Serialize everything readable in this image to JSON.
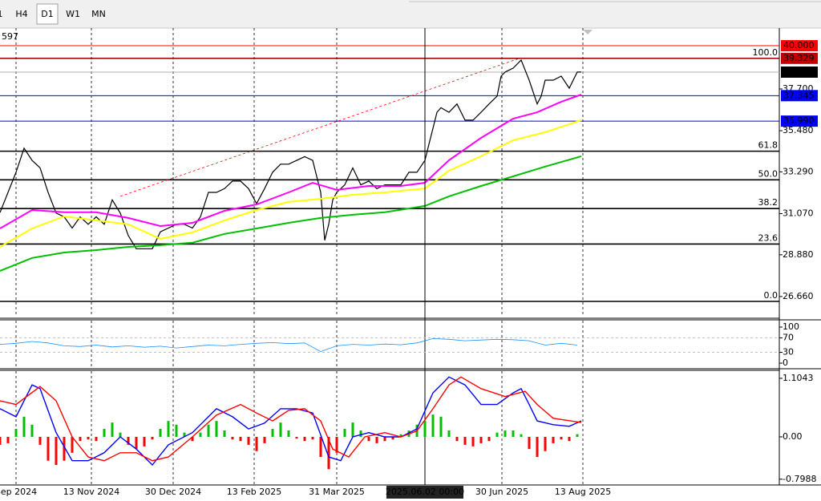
{
  "toolbar": {
    "timeframes": [
      "1",
      "H4",
      "D1",
      "W1",
      "MN"
    ],
    "selected": "D1"
  },
  "header_text": "597",
  "chart_data": [
    {
      "type": "line",
      "xlim": [
        0,
        972
      ],
      "ylim": [
        25.59,
        40.94
      ],
      "xticks": [
        {
          "value": 20,
          "label": "Sep 2024"
        },
        {
          "value": 114,
          "label": "13 Nov 2024"
        },
        {
          "value": 216,
          "label": "30 Dec 2024"
        },
        {
          "value": 317,
          "label": "13 Feb 2025"
        },
        {
          "value": 420,
          "label": "31 Mar 2025"
        },
        {
          "value": 626,
          "label": "30 Jun 2025"
        },
        {
          "value": 727,
          "label": "13 Aug 2025"
        }
      ],
      "yticks": [
        {
          "value": 26.66,
          "label": "26.660"
        },
        {
          "value": 28.88,
          "label": "28.880"
        },
        {
          "value": 31.07,
          "label": "31.070"
        },
        {
          "value": 33.29,
          "label": "33.290"
        },
        {
          "value": 35.48,
          "label": "35.480"
        },
        {
          "value": 37.7,
          "label": "37.700"
        }
      ],
      "grid": true,
      "crosshair": {
        "x": 530,
        "label": "2025.06.02 00:00"
      },
      "series": [
        {
          "name": "Close",
          "color": "#000000",
          "x": [
            0,
            10,
            20,
            30,
            40,
            50,
            60,
            70,
            80,
            90,
            100,
            110,
            120,
            130,
            140,
            150,
            160,
            170,
            180,
            190,
            200,
            210,
            220,
            230,
            240,
            250,
            260,
            270,
            280,
            290,
            300,
            310,
            320,
            330,
            340,
            350,
            360,
            370,
            380,
            390,
            400,
            405,
            410,
            415,
            420,
            430,
            440,
            450,
            460,
            470,
            480,
            490,
            500,
            510,
            520,
            530,
            535,
            540,
            545,
            550,
            560,
            570,
            580,
            590,
            600,
            610,
            620,
            625,
            630,
            640,
            650,
            660,
            670,
            675,
            680,
            690,
            700,
            710,
            720,
            725
          ],
          "values": [
            31.13,
            32.2,
            33.27,
            34.55,
            33.9,
            33.5,
            32.2,
            31.1,
            30.9,
            30.3,
            30.9,
            30.5,
            30.9,
            30.5,
            31.8,
            31.1,
            29.9,
            29.2,
            29.2,
            29.2,
            30.1,
            30.3,
            30.5,
            30.5,
            30.3,
            30.9,
            32.2,
            32.2,
            32.4,
            32.8,
            32.8,
            32.4,
            31.6,
            32.4,
            33.27,
            33.7,
            33.7,
            33.9,
            34.1,
            33.9,
            32.2,
            29.65,
            30.5,
            31.8,
            32.2,
            32.6,
            33.5,
            32.6,
            32.8,
            32.4,
            32.6,
            32.6,
            32.6,
            33.27,
            33.27,
            33.9,
            34.76,
            35.6,
            36.46,
            36.7,
            36.46,
            36.9,
            36.04,
            36.04,
            36.46,
            36.9,
            37.32,
            38.38,
            38.6,
            38.81,
            39.24,
            38.17,
            36.9,
            37.32,
            38.17,
            38.17,
            38.38,
            37.74,
            38.6,
            38.6
          ]
        },
        {
          "name": "MA fast",
          "color": "#ff00ff",
          "x": [
            0,
            40,
            80,
            120,
            160,
            200,
            240,
            280,
            320,
            360,
            390,
            420,
            460,
            500,
            530,
            560,
            600,
            640,
            670,
            700,
            725
          ],
          "values": [
            30.28,
            31.26,
            31.14,
            31.14,
            30.84,
            30.41,
            30.58,
            31.22,
            31.56,
            32.2,
            32.71,
            32.33,
            32.54,
            32.54,
            32.71,
            33.91,
            35.1,
            36.12,
            36.46,
            37.02,
            37.4
          ]
        },
        {
          "name": "MA mid",
          "color": "#ffff00",
          "x": [
            0,
            40,
            80,
            120,
            160,
            200,
            240,
            280,
            320,
            360,
            400,
            440,
            480,
            530,
            560,
            600,
            640,
            680,
            725
          ],
          "values": [
            29.3,
            30.28,
            30.92,
            30.71,
            30.5,
            29.73,
            30.07,
            30.71,
            31.26,
            31.69,
            31.86,
            32.07,
            32.2,
            32.41,
            33.35,
            34.12,
            34.97,
            35.4,
            36.04
          ]
        },
        {
          "name": "MA slow",
          "color": "#00c000",
          "x": [
            0,
            40,
            80,
            120,
            160,
            200,
            240,
            280,
            320,
            360,
            400,
            440,
            480,
            530,
            560,
            600,
            640,
            680,
            725
          ],
          "values": [
            28.02,
            28.71,
            29.0,
            29.13,
            29.3,
            29.39,
            29.52,
            29.99,
            30.28,
            30.58,
            30.84,
            31.01,
            31.14,
            31.48,
            31.99,
            32.54,
            33.05,
            33.57,
            34.12
          ]
        }
      ],
      "trendline": {
        "color": "#ff0000",
        "x": [
          150,
          650
        ],
        "values": [
          31.99,
          39.36
        ]
      },
      "price_lines": [
        {
          "value": 40.0,
          "label": "40.000",
          "color": "#ff0000"
        },
        {
          "value": 39.329,
          "label": "39.329",
          "color": "#c00000"
        },
        {
          "value": 38.597,
          "label": "38.597",
          "color": "#000000"
        },
        {
          "value": 37.345,
          "label": "37.345",
          "color": "#0000ff"
        },
        {
          "value": 35.99,
          "label": "35.990",
          "color": "#0000ff"
        }
      ],
      "fib_levels": [
        {
          "price": 26.4,
          "label": "0.0"
        },
        {
          "price": 29.45,
          "label": "23.6"
        },
        {
          "price": 31.34,
          "label": "38.2"
        },
        {
          "price": 32.87,
          "label": "50.0"
        },
        {
          "price": 34.39,
          "label": "61.8"
        },
        {
          "price": 39.33,
          "label": "100.0"
        }
      ]
    },
    {
      "type": "rsi",
      "xlim": [
        0,
        972
      ],
      "ylim": [
        -11,
        117.8
      ],
      "yticks": [
        100,
        70,
        30,
        0
      ],
      "levels": [
        70,
        30
      ],
      "series": [
        {
          "name": "RSI",
          "color": "#1e90ff",
          "x": [
            0,
            20,
            40,
            60,
            80,
            100,
            120,
            140,
            160,
            180,
            200,
            220,
            240,
            260,
            280,
            300,
            320,
            340,
            360,
            380,
            400,
            420,
            440,
            460,
            480,
            500,
            520,
            540,
            560,
            580,
            600,
            620,
            640,
            660,
            680,
            700,
            720
          ],
          "values": [
            52,
            55,
            60,
            56,
            48,
            46,
            50,
            45,
            48,
            44,
            47,
            42,
            46,
            50,
            48,
            52,
            55,
            57,
            54,
            56,
            32,
            48,
            52,
            50,
            53,
            51,
            56,
            68,
            66,
            62,
            64,
            66,
            65,
            62,
            50,
            55,
            50
          ]
        }
      ]
    },
    {
      "type": "macd",
      "xlim": [
        0,
        972
      ],
      "ylim": [
        -0.908,
        1.24
      ],
      "yticks": [
        1.1043,
        {
          "value": 0,
          "label": "0.00"
        },
        -0.7988
      ],
      "histogram": {
        "up_color": "#00c000",
        "down_color": "#ff0000",
        "x": [
          0,
          10,
          20,
          30,
          40,
          50,
          60,
          70,
          80,
          90,
          100,
          110,
          120,
          130,
          140,
          150,
          160,
          170,
          180,
          190,
          200,
          210,
          220,
          230,
          240,
          250,
          260,
          270,
          280,
          290,
          300,
          310,
          320,
          330,
          340,
          350,
          360,
          370,
          380,
          390,
          400,
          410,
          420,
          430,
          440,
          450,
          460,
          470,
          480,
          490,
          500,
          510,
          520,
          530,
          540,
          550,
          560,
          570,
          580,
          590,
          600,
          610,
          620,
          630,
          640,
          650,
          660,
          670,
          680,
          690,
          700,
          710,
          720
        ],
        "values": [
          -0.15,
          -0.12,
          0.15,
          0.38,
          0.23,
          -0.15,
          -0.45,
          -0.53,
          -0.45,
          -0.3,
          -0.08,
          -0.05,
          -0.08,
          0.15,
          0.27,
          0.08,
          -0.15,
          -0.23,
          -0.18,
          -0.05,
          0.15,
          0.3,
          0.23,
          0.08,
          -0.08,
          0.08,
          0.23,
          0.3,
          0.12,
          -0.05,
          -0.08,
          -0.15,
          -0.27,
          -0.12,
          0.15,
          0.27,
          0.12,
          -0.03,
          -0.08,
          -0.05,
          -0.38,
          -0.61,
          -0.3,
          0.15,
          0.27,
          0.12,
          -0.08,
          -0.12,
          -0.08,
          -0.05,
          0.05,
          0.12,
          0.23,
          0.3,
          0.42,
          0.38,
          0.12,
          -0.08,
          -0.15,
          -0.18,
          -0.12,
          -0.08,
          0.08,
          0.12,
          0.12,
          0.05,
          -0.23,
          -0.38,
          -0.27,
          -0.12,
          -0.05,
          -0.08,
          0.05
        ]
      },
      "series": [
        {
          "name": "MACD",
          "color": "#0000ff",
          "x": [
            0,
            20,
            40,
            50,
            70,
            90,
            110,
            130,
            150,
            170,
            190,
            210,
            240,
            270,
            290,
            310,
            330,
            350,
            370,
            390,
            410,
            425,
            440,
            460,
            480,
            500,
            520,
            540,
            560,
            580,
            600,
            620,
            640,
            650,
            660,
            670,
            690,
            710,
            725
          ],
          "values": [
            0.53,
            0.38,
            0.98,
            0.91,
            0.08,
            -0.45,
            -0.45,
            -0.3,
            0,
            -0.23,
            -0.53,
            -0.15,
            0.08,
            0.53,
            0.38,
            0.15,
            0.26,
            0.53,
            0.53,
            0.45,
            -0.38,
            -0.45,
            0,
            0.08,
            0,
            0,
            0.15,
            0.83,
            1.13,
            0.98,
            0.61,
            0.61,
            0.83,
            0.91,
            0.61,
            0.3,
            0.23,
            0.2,
            0.3
          ]
        },
        {
          "name": "Signal",
          "color": "#ff0000",
          "x": [
            0,
            20,
            50,
            70,
            90,
            110,
            130,
            150,
            170,
            190,
            210,
            240,
            270,
            300,
            320,
            340,
            360,
            380,
            400,
            415,
            435,
            455,
            480,
            500,
            520,
            540,
            560,
            575,
            600,
            630,
            655,
            670,
            690,
            725
          ],
          "values": [
            0.68,
            0.61,
            0.95,
            0.68,
            0,
            -0.38,
            -0.45,
            -0.3,
            -0.3,
            -0.45,
            -0.38,
            0,
            0.41,
            0.61,
            0.45,
            0.3,
            0.5,
            0.53,
            0.3,
            -0.23,
            -0.38,
            0,
            0.08,
            0,
            0.11,
            0.53,
            0.98,
            1.13,
            0.91,
            0.76,
            0.86,
            0.61,
            0.35,
            0.27
          ]
        }
      ]
    }
  ]
}
